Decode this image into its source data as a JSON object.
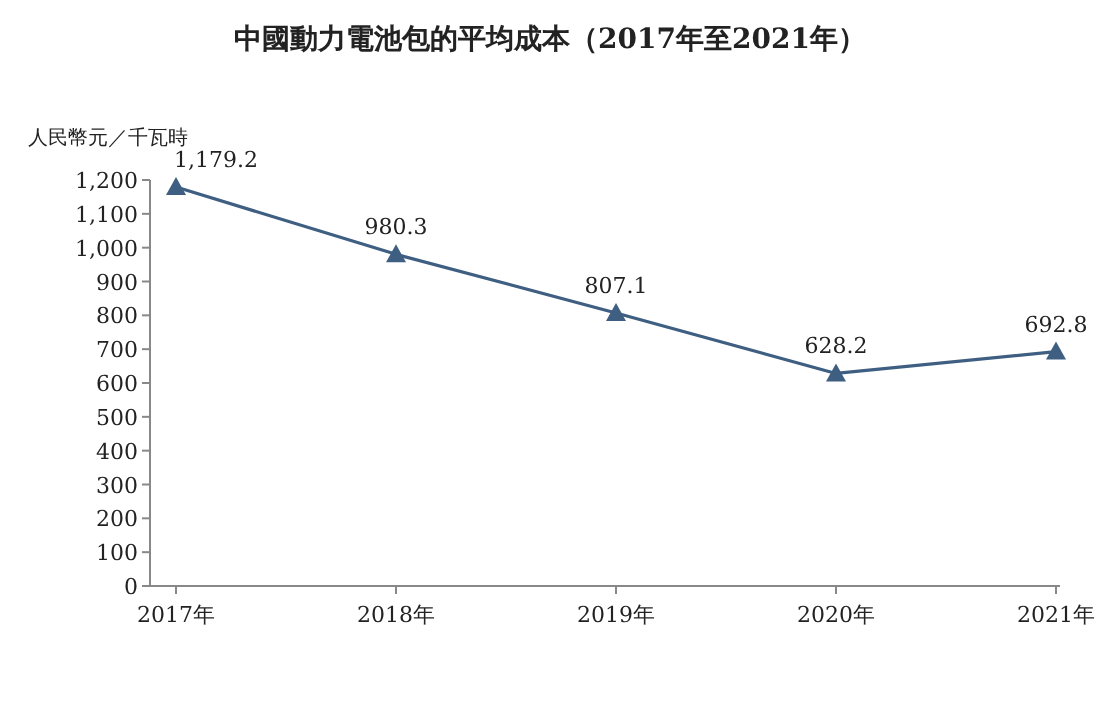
{
  "chart_data": {
    "type": "line",
    "title": "中國動力電池包的平均成本（2017年至2021年）",
    "ylabel": "人民幣元／千瓦時",
    "categories": [
      "2017年",
      "2018年",
      "2019年",
      "2020年",
      "2021年"
    ],
    "series": [
      {
        "color": "#3f5f82",
        "values": [
          1179.2,
          980.3,
          807.1,
          628.2,
          692.8
        ],
        "value_labels": [
          "1,179.2",
          "980.3",
          "807.1",
          "628.2",
          "692.8"
        ]
      }
    ],
    "ylim": [
      0,
      1200
    ],
    "yticks": [
      0,
      100,
      200,
      300,
      400,
      500,
      600,
      700,
      800,
      900,
      {
        "value": 1000,
        "label": "1,000"
      },
      {
        "value": 1100,
        "label": "1,100"
      },
      {
        "value": 1200,
        "label": "1,200"
      }
    ],
    "marker": "triangle",
    "line_style": "solid",
    "grid": false
  }
}
